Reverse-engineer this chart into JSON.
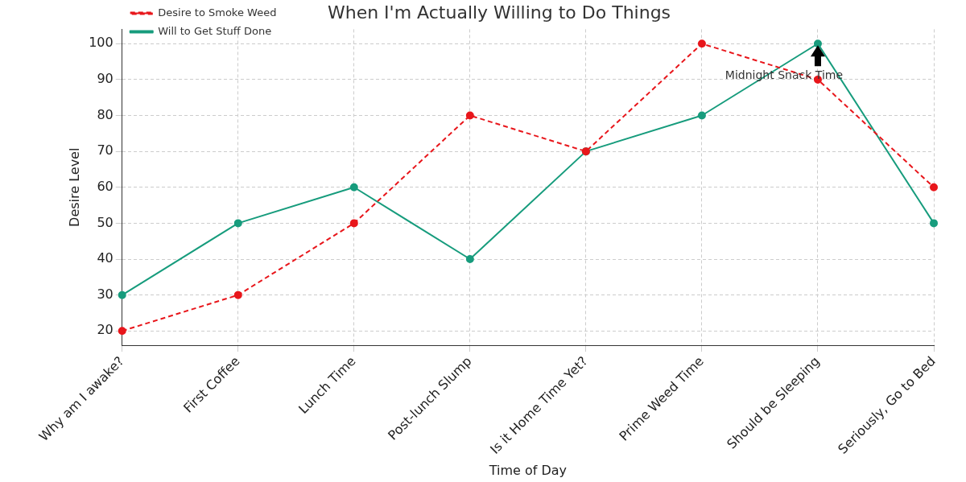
{
  "chart_data": {
    "type": "line",
    "title": "When I'm Actually Willing to Do Things",
    "xlabel": "Time of Day",
    "ylabel": "Desire Level",
    "categories": [
      "Why am I awake?",
      "First Coffee",
      "Lunch Time",
      "Post-lunch Slump",
      "Is it Home Time Yet?",
      "Prime Weed Time",
      "Should be Sleeping",
      "Seriously, Go to Bed"
    ],
    "series": [
      {
        "name": "Will to Get Stuff Done",
        "color": "#179c7d",
        "line_style": "solid",
        "values": [
          30,
          50,
          60,
          40,
          70,
          80,
          100,
          50
        ]
      },
      {
        "name": "Desire to Smoke Weed",
        "color": "#e8161b",
        "line_style": "dashed",
        "values": [
          20,
          30,
          50,
          80,
          70,
          100,
          90,
          60
        ]
      }
    ],
    "ylim": [
      16,
      104
    ],
    "yticks": [
      20,
      30,
      40,
      50,
      60,
      70,
      80,
      90,
      100
    ],
    "grid": true,
    "legend": "top left",
    "marker": "circle",
    "annotations": [
      {
        "text": "Midnight Snack Time",
        "x": "Should be Sleeping",
        "y": 100
      }
    ]
  }
}
